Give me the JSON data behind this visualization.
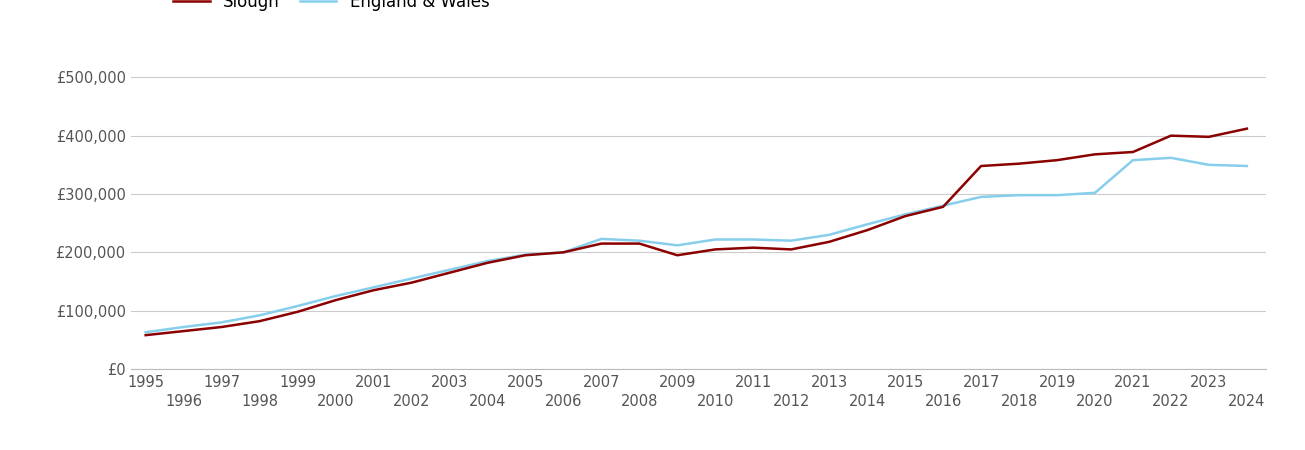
{
  "slough_years": [
    1995,
    1996,
    1997,
    1998,
    1999,
    2000,
    2001,
    2002,
    2003,
    2004,
    2005,
    2006,
    2007,
    2008,
    2009,
    2010,
    2011,
    2012,
    2013,
    2014,
    2015,
    2016,
    2017,
    2018,
    2019,
    2020,
    2021,
    2022,
    2023,
    2024
  ],
  "slough_values": [
    58000,
    65000,
    72000,
    82000,
    98000,
    118000,
    135000,
    148000,
    165000,
    182000,
    195000,
    200000,
    215000,
    215000,
    195000,
    205000,
    208000,
    205000,
    218000,
    238000,
    262000,
    278000,
    348000,
    352000,
    358000,
    368000,
    372000,
    400000,
    398000,
    412000
  ],
  "england_years": [
    1995,
    1996,
    1997,
    1998,
    1999,
    2000,
    2001,
    2002,
    2003,
    2004,
    2005,
    2006,
    2007,
    2008,
    2009,
    2010,
    2011,
    2012,
    2013,
    2014,
    2015,
    2016,
    2017,
    2018,
    2019,
    2020,
    2021,
    2022,
    2023,
    2024
  ],
  "england_values": [
    63000,
    72000,
    80000,
    92000,
    108000,
    125000,
    140000,
    155000,
    170000,
    185000,
    196000,
    200000,
    223000,
    220000,
    212000,
    222000,
    222000,
    220000,
    230000,
    248000,
    265000,
    280000,
    295000,
    298000,
    298000,
    302000,
    358000,
    362000,
    350000,
    348000
  ],
  "slough_color": "#8B0000",
  "england_color": "#87CEEB",
  "legend_labels": [
    "Slough",
    "England & Wales"
  ],
  "yticks": [
    0,
    100000,
    200000,
    300000,
    400000,
    500000
  ],
  "ytick_labels": [
    "£0",
    "£100,000",
    "£200,000",
    "£300,000",
    "£400,000",
    "£500,000"
  ],
  "ylim": [
    0,
    540000
  ],
  "xlim_min": 1994.6,
  "xlim_max": 2024.5,
  "grid_color": "#cccccc",
  "background_color": "#ffffff",
  "line_width": 1.8,
  "tick_color": "#555555",
  "tick_fontsize": 10.5,
  "legend_fontsize": 12
}
